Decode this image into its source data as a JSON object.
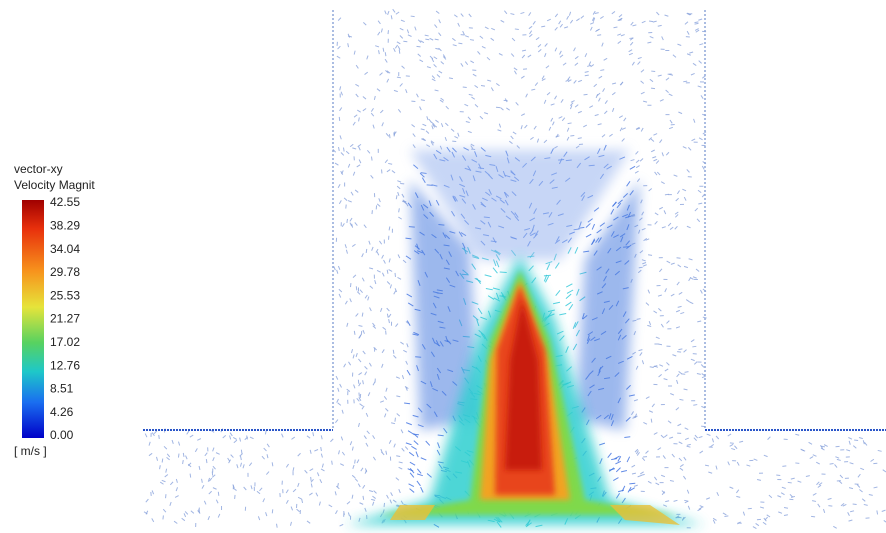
{
  "legend": {
    "title": "vector-xy",
    "variable": "Velocity Magnit",
    "ticks": [
      "42.55",
      "38.29",
      "34.04",
      "29.78",
      "25.53",
      "21.27",
      "17.02",
      "12.76",
      "8.51",
      "4.26",
      "0.00"
    ],
    "unit": "[ m/s ]"
  }
}
